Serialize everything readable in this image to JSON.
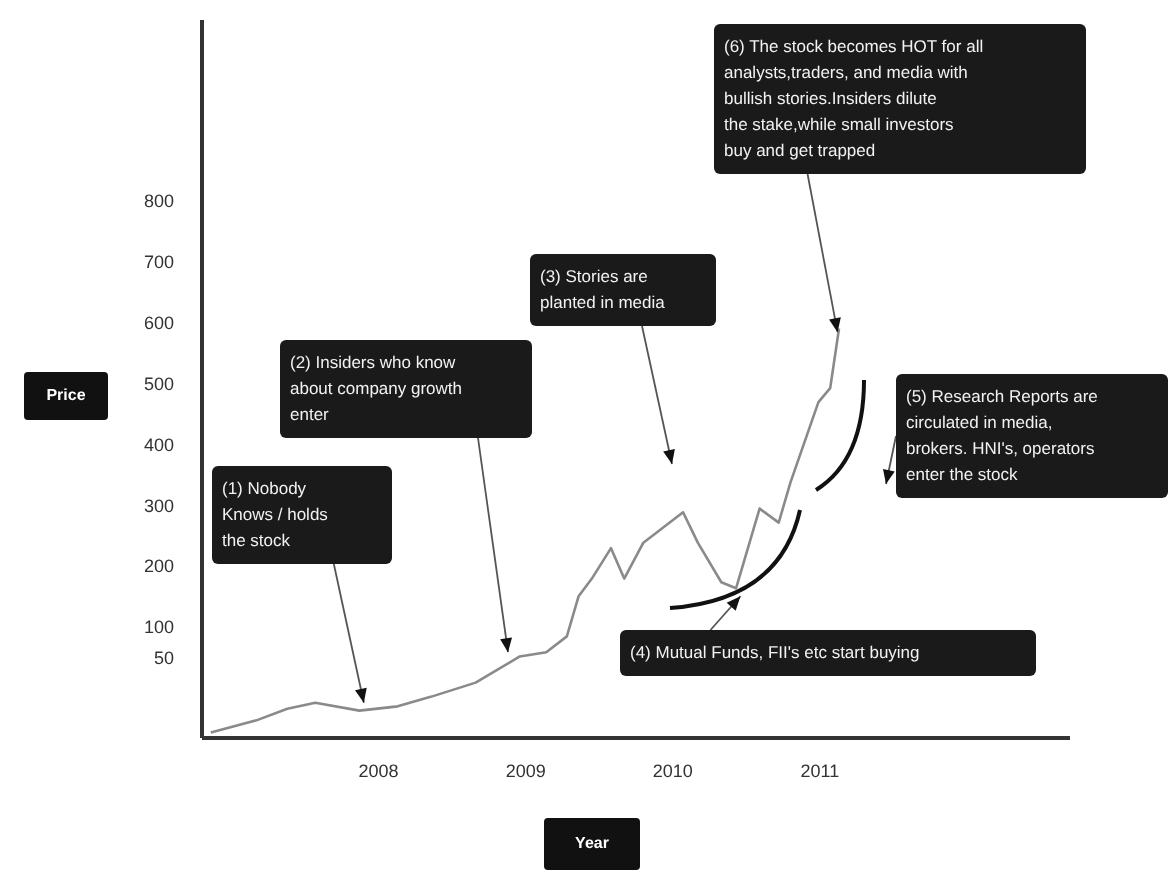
{
  "chart_data": {
    "type": "line",
    "xlabel": "Year",
    "ylabel": "Price",
    "x": [
      2006.86,
      2007.17,
      2007.38,
      2007.57,
      2007.87,
      2008.13,
      2008.36,
      2008.66,
      2008.96,
      2009.14,
      2009.28,
      2009.36,
      2009.45,
      2009.58,
      2009.67,
      2009.8,
      2010.07,
      2010.17,
      2010.33,
      2010.43,
      2010.59,
      2010.72,
      2010.8,
      2010.99,
      2011.07,
      2011.13
    ],
    "series": [
      {
        "color": "#8a8a8a",
        "values": [
          -71,
          -51,
          -32,
          -22,
          -35,
          -28,
          -12,
          11,
          54,
          61,
          87,
          153,
          182,
          232,
          182,
          241,
          291,
          241,
          176,
          166,
          297,
          274,
          340,
          472,
          495,
          593
        ]
      }
    ],
    "xlim": [
      2006.8,
      2012.7
    ],
    "xticks": [
      2008,
      2009,
      2010,
      2011
    ],
    "ylim": [
      -80,
      1100
    ],
    "yticks": [
      50,
      100,
      200,
      300,
      400,
      500,
      600,
      700,
      800
    ],
    "grid": false,
    "line_style": "solid",
    "marker": "none",
    "annotations": [
      {
        "text": "(1) Nobody Knows / holds the stock",
        "x": 2007.9,
        "y": -22
      },
      {
        "text": "(2) Insiders who know about company growth enter",
        "x": 2008.88,
        "y": 61
      },
      "(3) Stories are planted in media",
      {
        "text": "(6) The stock becomes HOT for all analysts,traders, and media with bullish stories.Insiders dilute the stake,while small investors buy and get trapped",
        "x": 2011.12,
        "y": 587
      },
      "(5) Research Reports are circulated in media, brokers. HNI's, operators enter the stock",
      {
        "text": "(4) Mutual Funds, FII's etc start buying",
        "x": 2010.46,
        "y": 153
      }
    ]
  }
}
